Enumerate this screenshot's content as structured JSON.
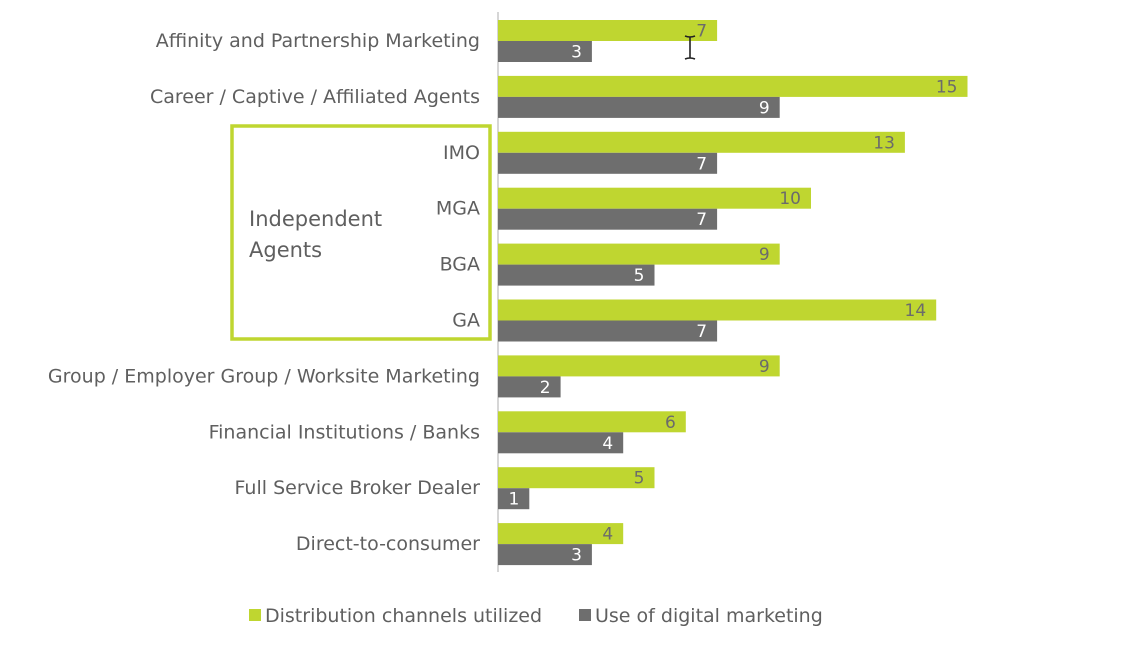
{
  "chart_data": {
    "type": "bar",
    "orientation": "horizontal",
    "categories": [
      "Affinity and Partnership Marketing",
      "Career / Captive / Affiliated Agents",
      "IMO",
      "MGA",
      "BGA",
      "GA",
      "Group / Employer Group / Worksite Marketing",
      "Financial Institutions / Banks",
      "Full Service Broker Dealer",
      "Direct-to-consumer"
    ],
    "series": [
      {
        "name": "Distribution channels utilized",
        "color": "#bfd630",
        "values": [
          7,
          15,
          13,
          10,
          9,
          14,
          9,
          6,
          5,
          4
        ]
      },
      {
        "name": "Use of digital marketing",
        "color": "#6e6e6e",
        "values": [
          3,
          9,
          7,
          7,
          5,
          7,
          2,
          4,
          1,
          3
        ]
      }
    ],
    "group": {
      "label": "Independent Agents",
      "label_lines": [
        "Independent",
        "Agents"
      ],
      "members": [
        "IMO",
        "MGA",
        "BGA",
        "GA"
      ],
      "color": "#bfd630"
    },
    "xlim": [
      0,
      15
    ],
    "grid": false,
    "legend": "bottom"
  }
}
